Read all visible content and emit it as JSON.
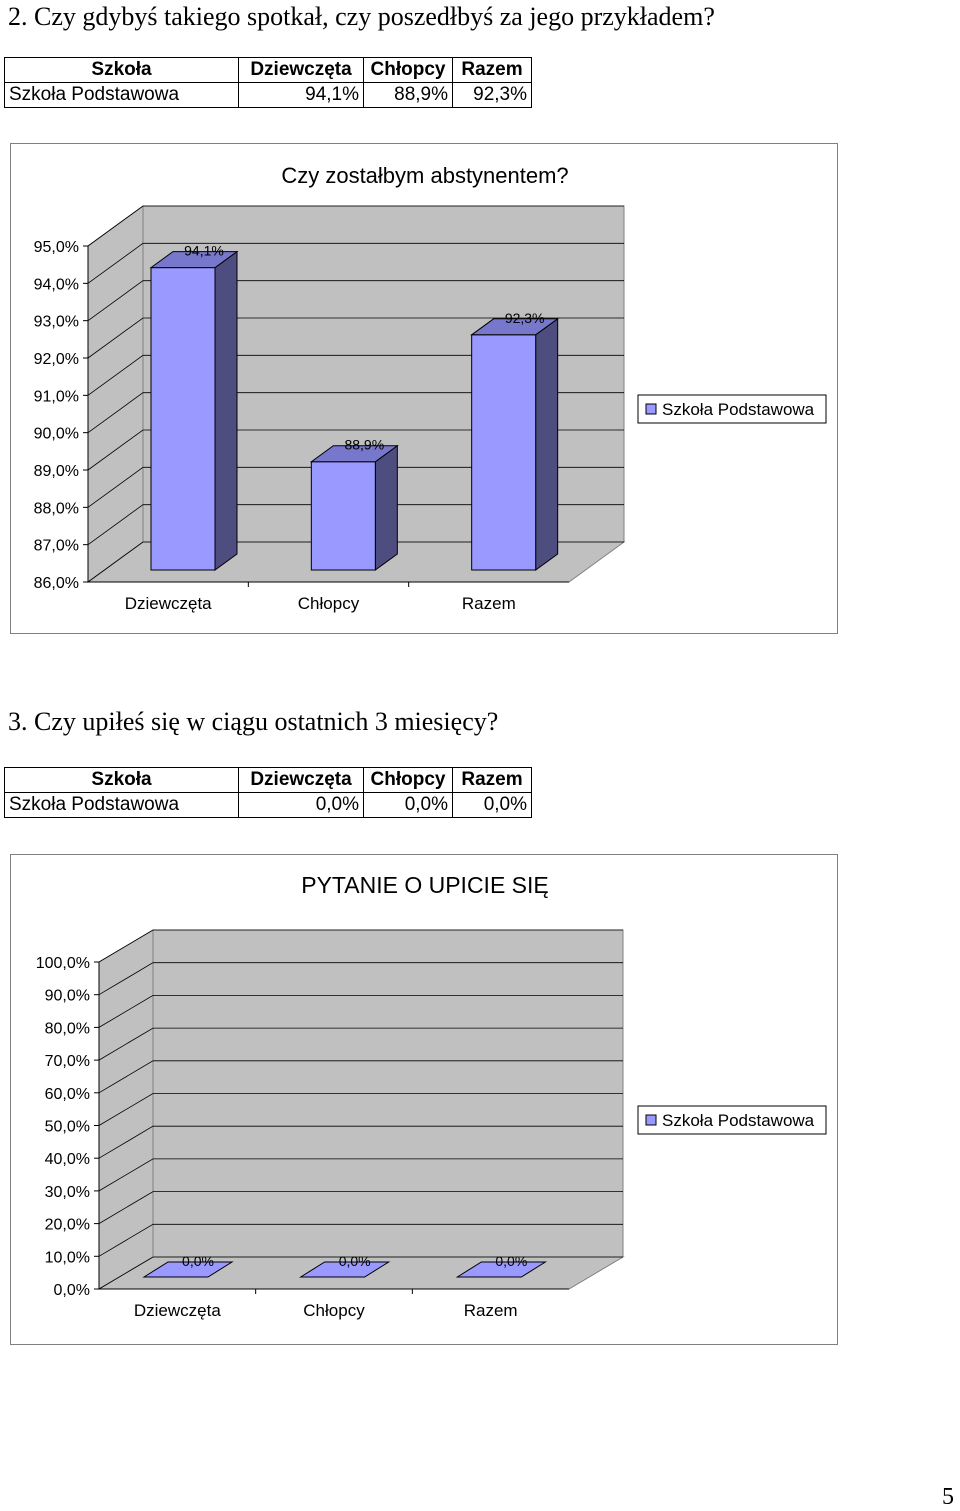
{
  "sections": [
    {
      "heading": "2. Czy gdybyś takiego spotkał, czy poszedłbyś za jego przykładem?",
      "table": {
        "headers": [
          "Szkoła",
          "Dziewczęta",
          "Chłopcy",
          "Razem"
        ],
        "row": [
          "Szkoła Podstawowa",
          "94,1%",
          "88,9%",
          "92,3%"
        ]
      }
    },
    {
      "heading": "3. Czy upiłeś się w ciągu ostatnich 3 miesięcy?",
      "table": {
        "headers": [
          "Szkoła",
          "Dziewczęta",
          "Chłopcy",
          "Razem"
        ],
        "row": [
          "Szkoła Podstawowa",
          "0,0%",
          "0,0%",
          "0,0%"
        ]
      }
    }
  ],
  "chart_data": [
    {
      "type": "bar",
      "title": "Czy zostałbym abstynentem?",
      "categories": [
        "Dziewczęta",
        "Chłopcy",
        "Razem"
      ],
      "series": [
        {
          "name": "Szkoła Podstawowa",
          "values": [
            94.1,
            88.9,
            92.3
          ],
          "labels": [
            "94,1%",
            "88,9%",
            "92,3%"
          ]
        }
      ],
      "ylim": [
        86,
        95
      ],
      "yticks": [
        "86,0%",
        "87,0%",
        "88,0%",
        "89,0%",
        "90,0%",
        "91,0%",
        "92,0%",
        "93,0%",
        "94,0%",
        "95,0%"
      ],
      "legend": "right",
      "grid": true,
      "style": "3d",
      "colors": {
        "bar_front": "#9999ff",
        "bar_side": "#4d4d80",
        "bar_top": "#7777cc",
        "wall": "#c0c0c0"
      }
    },
    {
      "type": "bar",
      "title": "PYTANIE O UPICIE SIĘ",
      "categories": [
        "Dziewczęta",
        "Chłopcy",
        "Razem"
      ],
      "series": [
        {
          "name": "Szkoła Podstawowa",
          "values": [
            0.0,
            0.0,
            0.0
          ],
          "labels": [
            "0,0%",
            "0,0%",
            "0,0%"
          ]
        }
      ],
      "ylim": [
        0,
        100
      ],
      "yticks": [
        "0,0%",
        "10,0%",
        "20,0%",
        "30,0%",
        "40,0%",
        "50,0%",
        "60,0%",
        "70,0%",
        "80,0%",
        "90,0%",
        "100,0%"
      ],
      "legend": "right",
      "grid": true,
      "style": "3d",
      "colors": {
        "bar_front": "#9999ff",
        "bar_side": "#4d4d80",
        "bar_top": "#7777cc",
        "wall": "#c0c0c0"
      }
    }
  ],
  "page_number": "5"
}
